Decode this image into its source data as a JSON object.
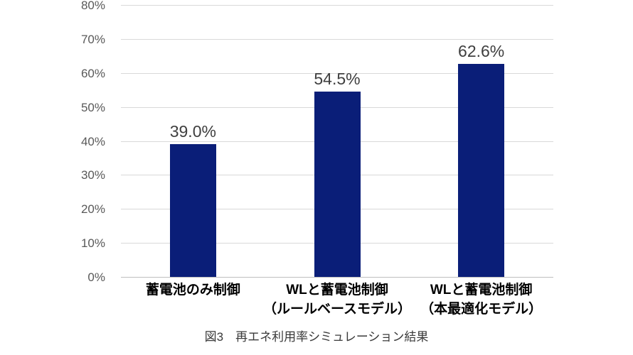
{
  "figure": {
    "caption": "図3　再エネ利用率シミュレーション結果"
  },
  "chart_data": {
    "type": "bar",
    "title": "",
    "categories": [
      "蓄電池のみ制御",
      "WLと蓄電池制御\n（ルールベースモデル）",
      "WLと蓄電池制御\n（本最適化モデル）"
    ],
    "values": [
      39.0,
      54.5,
      62.6
    ],
    "data_labels": [
      "39.0%",
      "54.5%",
      "62.6%"
    ],
    "xlabel": "",
    "ylabel": "",
    "ylim": [
      0,
      80
    ],
    "ytick_step": 10,
    "ytick_labels": [
      "0%",
      "10%",
      "20%",
      "30%",
      "40%",
      "50%",
      "60%",
      "70%",
      "80%"
    ],
    "grid": true,
    "legend": false,
    "colors": {
      "bar": "#0a1e78",
      "gridline": "#d9d9d9",
      "axis_line": "#bfbfbf",
      "ytick_label": "#595959",
      "data_label": "#3f3f3f",
      "category_label": "#000000",
      "caption": "#3a3a3a"
    }
  }
}
